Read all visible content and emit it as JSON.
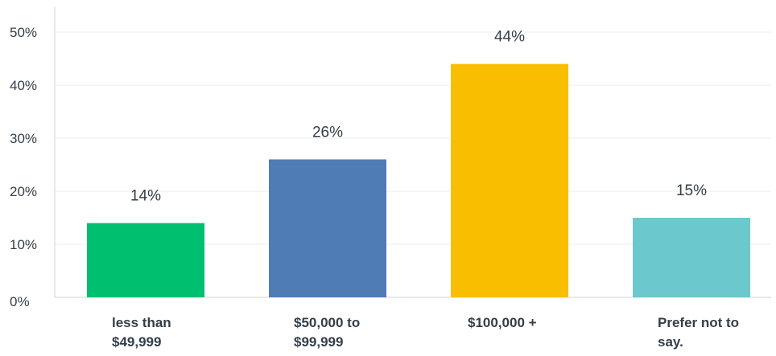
{
  "chart_data": {
    "type": "bar",
    "categories": [
      [
        "less than",
        "$49,999"
      ],
      [
        "$50,000 to",
        "$99,999"
      ],
      [
        "$100,000 +"
      ],
      [
        "Prefer not to",
        "say."
      ]
    ],
    "values": [
      14,
      26,
      44,
      15
    ],
    "data_labels": [
      "14%",
      "26%",
      "44%",
      "15%"
    ],
    "colors": [
      "#00bf6f",
      "#507cb6",
      "#f9be00",
      "#6bc8cd"
    ],
    "yticks": [
      0,
      10,
      20,
      30,
      40,
      50
    ],
    "ytick_labels": [
      "0%",
      "10%",
      "20%",
      "30%",
      "40%",
      "50%"
    ],
    "ylim": [
      0,
      50
    ],
    "grid": true,
    "title": "",
    "xlabel": "",
    "ylabel": ""
  }
}
